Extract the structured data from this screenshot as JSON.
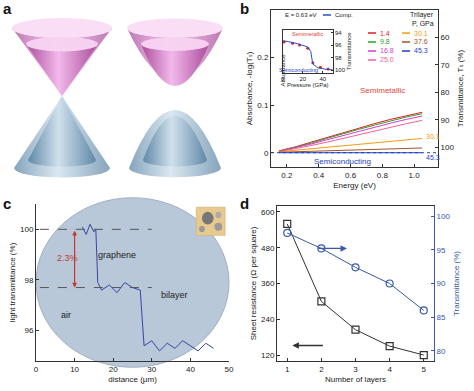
{
  "panel_labels": [
    "a",
    "b",
    "c",
    "d"
  ],
  "chart_data": [
    {
      "type": "line",
      "x_label": "Energy (eV)",
      "y_label": "Absorbance, -log(Tₛ)",
      "y2_label": "Transmittance, Tₛ (%)",
      "legend_title": [
        "Trilayer",
        "P, GPa"
      ],
      "legend": "upper right",
      "x": [
        0.15,
        0.25,
        0.35,
        0.45,
        0.55,
        0.65,
        0.75,
        0.85,
        0.95,
        1.05
      ],
      "xlim": [
        0.1,
        1.15
      ],
      "xticks": [
        0.2,
        0.4,
        0.6,
        0.8,
        {
          "value": 1,
          "label": "1.0"
        }
      ],
      "ylim": [
        -0.03,
        0.3
      ],
      "yticks": [
        0,
        0.1,
        0.2
      ],
      "y2lim": [
        107.2,
        50.1
      ],
      "y2ticks": [
        60,
        70,
        80,
        90,
        100
      ],
      "hline": 0,
      "annotations": [
        "Semimetallic",
        "Semiconducting",
        "30.1",
        "45.3"
      ],
      "series": [
        {
          "name": "1.4",
          "color": "#e41a1c",
          "values": [
            0.004,
            0.012,
            0.022,
            0.032,
            0.042,
            0.052,
            0.061,
            0.07,
            0.078,
            0.085
          ]
        },
        {
          "name": "9.8",
          "color": "#2ca02c",
          "values": [
            0.003,
            0.011,
            0.02,
            0.03,
            0.04,
            0.049,
            0.058,
            0.067,
            0.075,
            0.082
          ]
        },
        {
          "name": "16.8",
          "color": "#d03cd0",
          "values": [
            0.003,
            0.01,
            0.018,
            0.027,
            0.036,
            0.045,
            0.054,
            0.062,
            0.07,
            0.077
          ]
        },
        {
          "name": "25.0",
          "color": "#f0609a",
          "values": [
            0.002,
            0.008,
            0.015,
            0.022,
            0.03,
            0.038,
            0.046,
            0.054,
            0.061,
            0.068
          ]
        },
        {
          "name": "30.1",
          "color": "#f39c12",
          "values": [
            0.002,
            0.005,
            0.008,
            0.011,
            0.014,
            0.017,
            0.02,
            0.023,
            0.026,
            0.03
          ]
        },
        {
          "name": "37.6",
          "color": "#a0522d",
          "values": [
            0.001,
            0.002,
            0.003,
            0.004,
            0.005,
            0.006,
            0.007,
            0.008,
            0.009,
            0.01
          ]
        },
        {
          "name": "45.3",
          "color": "#1f3fbf",
          "values": [
            0.0,
            0.0,
            0.001,
            0.0,
            0.001,
            0.0,
            0.001,
            0.0,
            0.001,
            0.0
          ]
        }
      ]
    },
    {
      "type": "scatter",
      "annotations": [
        "E = 0.63 eV",
        "Semimetallic",
        "Semiconducting",
        "Absorbance"
      ],
      "x_label": "Pressure (GPa)",
      "y_label": "Transmittance",
      "xlim": [
        0,
        50
      ],
      "xticks": [
        0,
        20,
        40
      ],
      "ylim": [
        100.4,
        93.6
      ],
      "yticks": [
        94,
        96,
        98,
        100
      ],
      "series": [
        {
          "type": "scatter",
          "marker": "circle",
          "color": "#d62728",
          "x": [
            1.4,
            9.8,
            16.8,
            25.0,
            30.1,
            37.6,
            45.3
          ],
          "values": [
            95.5,
            95.7,
            96.0,
            96.5,
            98.8,
            99.5,
            99.8
          ]
        },
        {
          "name": "Comp.",
          "type": "line",
          "color": "#2b4fc4",
          "x": [
            0,
            5,
            10,
            15,
            20,
            25,
            28,
            30,
            35,
            40,
            45,
            50
          ],
          "values": [
            95.3,
            95.4,
            95.6,
            95.8,
            96.0,
            96.3,
            97.0,
            99.0,
            99.6,
            99.8,
            99.9,
            99.9
          ]
        }
      ]
    },
    {
      "type": "line",
      "x_label": "distance (μm)",
      "y_label": "light transmittance (%)",
      "xlim": [
        0,
        50
      ],
      "xticks": [
        0,
        10,
        20,
        30,
        40,
        50
      ],
      "ylim": [
        94.8,
        101
      ],
      "yticks": [
        96,
        98,
        100
      ],
      "x": [
        12,
        13,
        14,
        15,
        15.5,
        16,
        17,
        19,
        21,
        23,
        25,
        27,
        27.5,
        28,
        30,
        32,
        34,
        36,
        38,
        40,
        42,
        44,
        46
      ],
      "values": [
        100.1,
        99.8,
        100.2,
        99.9,
        100.0,
        97.9,
        97.6,
        97.8,
        97.5,
        97.9,
        97.7,
        97.6,
        96.5,
        95.4,
        95.6,
        95.2,
        95.5,
        95.3,
        95.6,
        95.4,
        95.2,
        95.5,
        95.3
      ],
      "color": "#3645a8",
      "hlines": [
        100,
        97.7
      ],
      "annotations": [
        "2.3%",
        "graphene",
        "air",
        "bilayer"
      ]
    },
    {
      "type": "line",
      "x_label": "Number of layers",
      "y_label": "Sheet resistance (Ω per square)",
      "y2_label": "Transmittance (%)",
      "x": [
        1,
        2,
        3,
        4,
        5
      ],
      "xlim": [
        0.7,
        5.3
      ],
      "xticks": [
        1,
        2,
        3,
        4,
        5
      ],
      "ylim": [
        100,
        620
      ],
      "yticks": [
        120,
        240,
        360,
        480,
        600
      ],
      "y2lim": [
        78.5,
        101.5
      ],
      "y2ticks": [
        80,
        85,
        90,
        95,
        100
      ],
      "series": [
        {
          "color": "#333333",
          "marker": "square-open",
          "values": [
            560,
            300,
            205,
            150,
            120
          ]
        },
        {
          "color": "#3a5aa8",
          "marker": "circle-open",
          "axis": "y2",
          "values": [
            97.5,
            95.2,
            92.4,
            90.0,
            86.0
          ]
        }
      ]
    }
  ]
}
